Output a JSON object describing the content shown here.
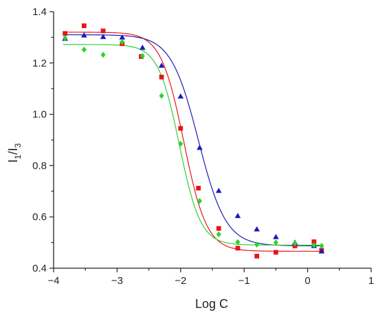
{
  "chart_data": {
    "type": "scatter",
    "title": "",
    "xlabel": "Log C",
    "ylabel": {
      "base1": "I",
      "sub1": "1",
      "sep": "/",
      "base2": "I",
      "sub2": "3"
    },
    "xlim": [
      -4,
      1
    ],
    "ylim": [
      0.4,
      1.4
    ],
    "x_ticks": [
      -4,
      -3,
      -2,
      -1,
      0,
      1
    ],
    "x_tick_labels": [
      "−4",
      "−3",
      "−2",
      "−1",
      "0",
      "1"
    ],
    "y_ticks": [
      0.4,
      0.6,
      0.8,
      1.0,
      1.2,
      1.4
    ],
    "y_tick_labels": [
      "0.4",
      "0.6",
      "0.8",
      "1.0",
      "1.2",
      "1.4"
    ],
    "grid": false,
    "legend": "none",
    "series": [
      {
        "color": "#e8141b",
        "marker": "square",
        "points": [
          [
            -3.82,
            1.315
          ],
          [
            -3.52,
            1.345
          ],
          [
            -3.22,
            1.325
          ],
          [
            -2.92,
            1.275
          ],
          [
            -2.62,
            1.225
          ],
          [
            -2.3,
            1.145
          ],
          [
            -2.0,
            0.945
          ],
          [
            -1.72,
            0.712
          ],
          [
            -1.4,
            0.555
          ],
          [
            -1.1,
            0.478
          ],
          [
            -0.8,
            0.447
          ],
          [
            -0.5,
            0.462
          ],
          [
            -0.2,
            0.487
          ],
          [
            0.1,
            0.503
          ],
          [
            0.22,
            0.47
          ]
        ],
        "fit": {
          "top": 1.32,
          "bottom": 0.466,
          "x0": -1.95,
          "slope": 2.4
        }
      },
      {
        "color": "#1a1ab8",
        "marker": "triangle",
        "points": [
          [
            -3.82,
            1.295
          ],
          [
            -3.52,
            1.308
          ],
          [
            -3.22,
            1.302
          ],
          [
            -2.92,
            1.3
          ],
          [
            -2.6,
            1.26
          ],
          [
            -2.3,
            1.19
          ],
          [
            -2.0,
            1.07
          ],
          [
            -1.7,
            0.87
          ],
          [
            -1.4,
            0.702
          ],
          [
            -1.1,
            0.604
          ],
          [
            -0.8,
            0.552
          ],
          [
            -0.5,
            0.522
          ],
          [
            -0.2,
            0.5
          ],
          [
            0.1,
            0.487
          ],
          [
            0.22,
            0.466
          ]
        ],
        "fit": {
          "top": 1.31,
          "bottom": 0.487,
          "x0": -1.72,
          "slope": 2.0
        }
      },
      {
        "color": "#2ed12e",
        "marker": "diamond",
        "points": [
          [
            -3.82,
            1.297
          ],
          [
            -3.52,
            1.252
          ],
          [
            -3.22,
            1.232
          ],
          [
            -2.92,
            1.282
          ],
          [
            -2.6,
            1.227
          ],
          [
            -2.3,
            1.072
          ],
          [
            -2.0,
            0.885
          ],
          [
            -1.7,
            0.662
          ],
          [
            -1.4,
            0.532
          ],
          [
            -1.1,
            0.502
          ],
          [
            -0.8,
            0.492
          ],
          [
            -0.5,
            0.5
          ],
          [
            -0.2,
            0.497
          ],
          [
            0.1,
            0.49
          ],
          [
            0.22,
            0.487
          ]
        ],
        "fit": {
          "top": 1.272,
          "bottom": 0.49,
          "x0": -2.02,
          "slope": 2.6
        }
      }
    ]
  }
}
